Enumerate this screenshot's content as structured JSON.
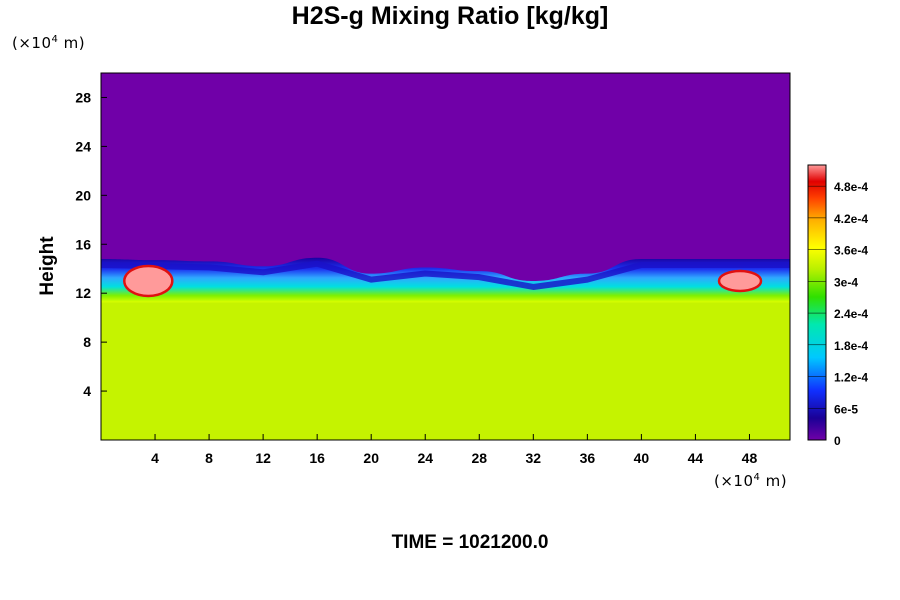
{
  "title": "H2S-g Mixing Ratio [kg/kg]",
  "time_label": "TIME = 1021200.0",
  "y_unit": {
    "prefix": "(×10",
    "exp": "4",
    "suffix": " m)"
  },
  "x_unit": {
    "prefix": "(×10",
    "exp": "4",
    "suffix": " m)"
  },
  "chart_data": {
    "type": "heatmap",
    "title": "H2S-g Mixing Ratio [kg/kg]",
    "ylabel": "Height",
    "xlabel": "",
    "x_unit": "×10^4 m",
    "y_unit": "×10^4 m",
    "xlim": [
      0,
      51
    ],
    "ylim": [
      0,
      30
    ],
    "x_ticks": [
      4,
      8,
      12,
      16,
      20,
      24,
      28,
      32,
      36,
      40,
      44,
      48
    ],
    "y_ticks": [
      4,
      8,
      12,
      16,
      20,
      24,
      28
    ],
    "colorbar": {
      "vmin": 0,
      "vmax": 0.00052,
      "tick_values": [
        0,
        6e-05,
        0.00012,
        0.00018,
        0.00024,
        0.0003,
        0.00036,
        0.00042,
        0.00048
      ],
      "tick_labels": [
        "0",
        "6e-5",
        "1.2e-4",
        "1.8e-4",
        "2.4e-4",
        "3e-4",
        "3.6e-4",
        "4.2e-4",
        "4.8e-4"
      ]
    },
    "regions": {
      "lower_layer_value": 0.00033,
      "upper_layer_value": 0.0,
      "interface_height_profile": {
        "x": [
          0,
          4,
          8,
          12,
          16,
          20,
          24,
          28,
          32,
          36,
          40,
          44,
          48,
          51
        ],
        "y": [
          14.8,
          14.7,
          14.6,
          14.2,
          14.9,
          13.6,
          14.1,
          13.8,
          13.0,
          13.6,
          14.8,
          14.8,
          14.8,
          14.8
        ]
      },
      "mixing_layer_base": 11.5,
      "high_concentration_patches": [
        {
          "x_center": 3.5,
          "y_center": 13.0,
          "value": 0.00052
        },
        {
          "x_center": 47.3,
          "y_center": 13.0,
          "value": 0.00052
        }
      ]
    }
  }
}
